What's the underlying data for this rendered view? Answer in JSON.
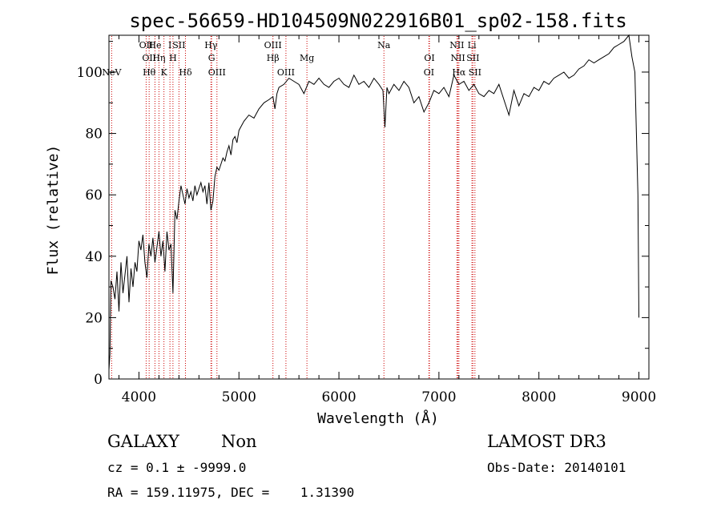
{
  "chart_data": {
    "type": "line",
    "title": "spec-56659-HD104509N022916B01_sp02-158.fits",
    "xlabel": "Wavelength (Å)",
    "ylabel": "Flux (relative)",
    "xlim": [
      3700,
      9100
    ],
    "ylim": [
      0,
      112
    ],
    "xticks": [
      4000,
      5000,
      6000,
      7000,
      8000,
      9000
    ],
    "yticks": [
      0,
      20,
      40,
      60,
      80,
      100
    ],
    "grid": false,
    "series": [
      {
        "x": [
          3700,
          3710,
          3720,
          3740,
          3760,
          3780,
          3800,
          3820,
          3840,
          3860,
          3880,
          3900,
          3920,
          3940,
          3960,
          3980,
          4000,
          4020,
          4040,
          4060,
          4080,
          4100,
          4120,
          4140,
          4160,
          4180,
          4200,
          4220,
          4240,
          4260,
          4280,
          4300,
          4320,
          4340,
          4360,
          4380,
          4400,
          4420,
          4440,
          4460,
          4480,
          4500,
          4520,
          4540,
          4560,
          4580,
          4600,
          4620,
          4640,
          4660,
          4680,
          4700,
          4720,
          4740,
          4760,
          4780,
          4800,
          4820,
          4840,
          4860,
          4880,
          4900,
          4920,
          4940,
          4960,
          4980,
          5000,
          5050,
          5100,
          5150,
          5200,
          5250,
          5300,
          5340,
          5360,
          5380,
          5400,
          5450,
          5500,
          5550,
          5600,
          5650,
          5700,
          5750,
          5800,
          5850,
          5900,
          5950,
          6000,
          6050,
          6100,
          6150,
          6200,
          6250,
          6300,
          6350,
          6400,
          6440,
          6460,
          6480,
          6500,
          6550,
          6600,
          6650,
          6700,
          6750,
          6800,
          6850,
          6900,
          6950,
          7000,
          7050,
          7100,
          7150,
          7200,
          7250,
          7300,
          7350,
          7400,
          7450,
          7500,
          7550,
          7600,
          7650,
          7700,
          7750,
          7800,
          7850,
          7900,
          7950,
          8000,
          8050,
          8100,
          8150,
          8200,
          8250,
          8300,
          8350,
          8400,
          8450,
          8500,
          8550,
          8600,
          8650,
          8700,
          8750,
          8800,
          8850,
          8900,
          8930,
          8960,
          8990,
          9000
        ],
        "y": [
          3,
          8,
          32,
          30,
          26,
          35,
          22,
          38,
          28,
          34,
          40,
          25,
          36,
          30,
          38,
          35,
          45,
          42,
          47,
          38,
          33,
          44,
          40,
          46,
          38,
          43,
          48,
          40,
          45,
          35,
          48,
          42,
          44,
          28,
          55,
          52,
          58,
          63,
          60,
          57,
          62,
          59,
          61,
          58,
          63,
          60,
          62,
          64,
          61,
          63,
          57,
          64,
          55,
          58,
          66,
          69,
          68,
          70,
          72,
          71,
          74,
          76,
          73,
          78,
          79,
          77,
          81,
          84,
          86,
          85,
          88,
          90,
          91,
          92,
          88,
          93,
          95,
          96,
          98,
          97,
          96,
          93,
          97,
          96,
          98,
          96,
          95,
          97,
          98,
          96,
          95,
          99,
          96,
          97,
          95,
          98,
          96,
          94,
          82,
          95,
          93,
          96,
          94,
          97,
          95,
          90,
          92,
          87,
          90,
          94,
          93,
          95,
          92,
          99,
          96,
          97,
          94,
          96,
          93,
          92,
          94,
          93,
          96,
          91,
          86,
          94,
          89,
          93,
          92,
          95,
          94,
          97,
          96,
          98,
          99,
          100,
          98,
          99,
          101,
          102,
          104,
          103,
          104,
          105,
          106,
          108,
          109,
          110,
          112,
          105,
          100,
          60,
          20
        ]
      }
    ],
    "lines": [
      {
        "x": 3727,
        "label": "NeV",
        "row": 3
      },
      {
        "x": 4072,
        "label": "OII",
        "row": 1
      },
      {
        "x": 4102,
        "label": "OII",
        "row": 2
      },
      {
        "x": 4102,
        "label": "Hθ",
        "row": 3
      },
      {
        "x": 4160,
        "label": "He",
        "row": 1
      },
      {
        "x": 4200,
        "label": "Hη",
        "row": 2
      },
      {
        "x": 4250,
        "label": "K",
        "row": 3
      },
      {
        "x": 4310,
        "label": "I",
        "row": 1
      },
      {
        "x": 4340,
        "label": "H",
        "row": 2
      },
      {
        "x": 4400,
        "label": "SII",
        "row": 1
      },
      {
        "x": 4465,
        "label": "Hδ",
        "row": 3
      },
      {
        "x": 4720,
        "label": "Hγ",
        "row": 1
      },
      {
        "x": 4727,
        "label": "G",
        "row": 2
      },
      {
        "x": 4780,
        "label": "OIII",
        "row": 3
      },
      {
        "x": 5340,
        "label": "OIII",
        "row": 1
      },
      {
        "x": 5340,
        "label": "Hβ",
        "row": 2
      },
      {
        "x": 5470,
        "label": "OIII",
        "row": 3
      },
      {
        "x": 5680,
        "label": "Mg",
        "row": 2
      },
      {
        "x": 6450,
        "label": "Na",
        "row": 1
      },
      {
        "x": 6905,
        "label": "OI",
        "row": 2
      },
      {
        "x": 6900,
        "label": "OI",
        "row": 3
      },
      {
        "x": 7180,
        "label": "NII",
        "row": 1
      },
      {
        "x": 7190,
        "label": "NII",
        "row": 2
      },
      {
        "x": 7200,
        "label": "Hα",
        "row": 3
      },
      {
        "x": 7330,
        "label": "Li",
        "row": 1
      },
      {
        "x": 7340,
        "label": "SII",
        "row": 2
      },
      {
        "x": 7360,
        "label": "SII",
        "row": 3
      }
    ]
  },
  "info": {
    "class": "GALAXY",
    "subclass": "Non",
    "survey": "LAMOST DR3",
    "cz": "cz = 0.1 ± -9999.0",
    "obs_date": "Obs-Date: 20140101",
    "radec": "RA = 159.11975, DEC =    1.31390"
  },
  "colors": {
    "spectrum": "#000000",
    "line_marker": "#cc0000",
    "axis": "#000000"
  }
}
